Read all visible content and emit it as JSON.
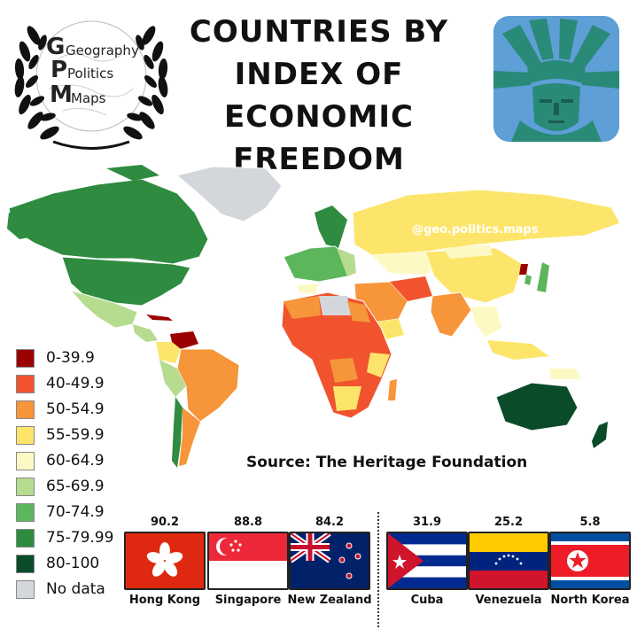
{
  "logo": {
    "line1": "Geography",
    "line2": "Politics",
    "line3": "Maps",
    "letters": [
      "G",
      "P",
      "M"
    ]
  },
  "title": {
    "line1": "COUNTRIES BY",
    "line2": "INDEX OF",
    "line3": "ECONOMIC FREEDOM"
  },
  "watermark": "@geo.politics.maps",
  "source": "Source: The Heritage Foundation",
  "legend": [
    {
      "label": "0-39.9",
      "color": "#9b0000"
    },
    {
      "label": "40-49.9",
      "color": "#f0532e"
    },
    {
      "label": "50-54.9",
      "color": "#f6953a"
    },
    {
      "label": "55-59.9",
      "color": "#fde56b"
    },
    {
      "label": "60-64.9",
      "color": "#fdf9c4"
    },
    {
      "label": "65-69.9",
      "color": "#b6dc8f"
    },
    {
      "label": "70-74.9",
      "color": "#5cb65c"
    },
    {
      "label": "75-79.99",
      "color": "#2e8b3f"
    },
    {
      "label": "80-100",
      "color": "#0a4b2a"
    },
    {
      "label": "No data",
      "color": "#d3d7db"
    }
  ],
  "flags": [
    {
      "name": "Hong Kong",
      "score": "90.2",
      "flag": "hong-kong-flag-icon"
    },
    {
      "name": "Singapore",
      "score": "88.8",
      "flag": "singapore-flag-icon"
    },
    {
      "name": "New Zealand",
      "score": "84.2",
      "flag": "new-zealand-flag-icon"
    },
    {
      "name": "Cuba",
      "score": "31.9",
      "flag": "cuba-flag-icon"
    },
    {
      "name": "Venezuela",
      "score": "25.2",
      "flag": "venezuela-flag-icon"
    },
    {
      "name": "North Korea",
      "score": "5.8",
      "flag": "north-korea-flag-icon"
    }
  ],
  "icons": {
    "statue": "statue-of-liberty-icon",
    "wreath": "laurel-wreath-icon"
  }
}
